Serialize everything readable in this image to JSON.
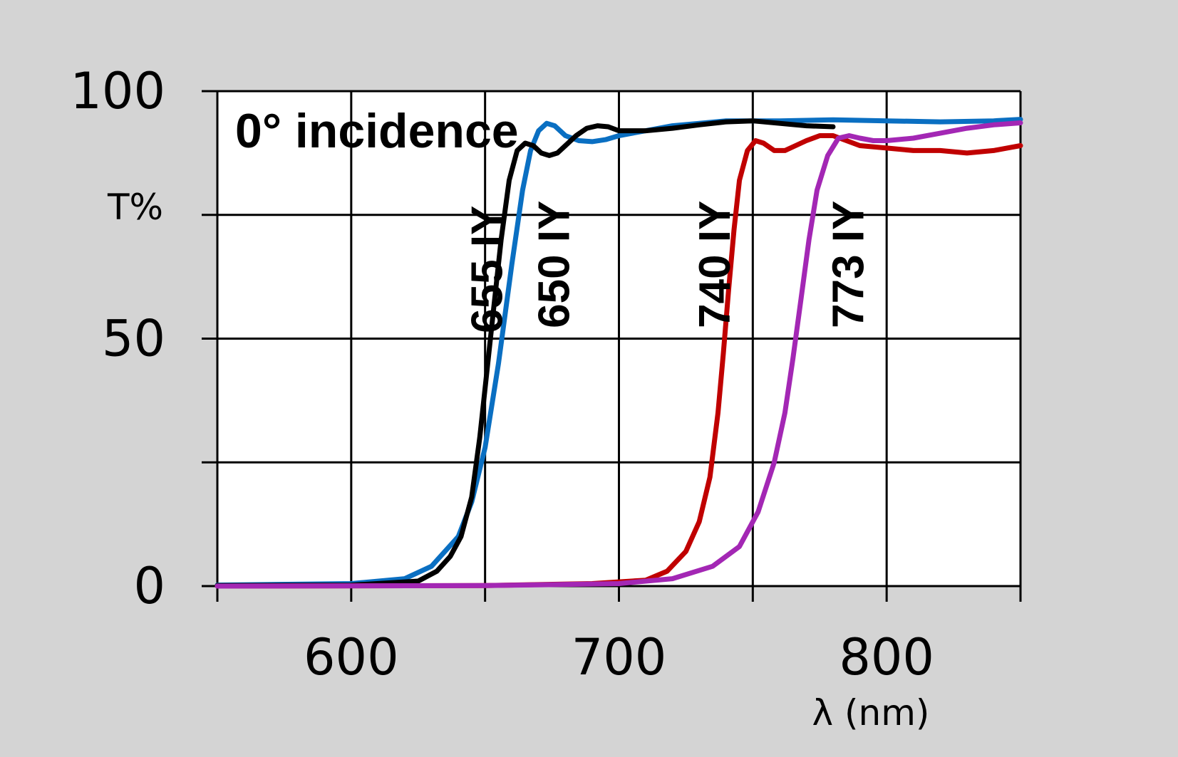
{
  "chart_data": {
    "type": "line",
    "title": "",
    "annotation": "0° incidence",
    "xlabel": "λ (nm)",
    "ylabel": "T%",
    "xlim": [
      550,
      850
    ],
    "ylim": [
      0,
      100
    ],
    "x_ticks": [
      600,
      700,
      800
    ],
    "y_ticks": [
      0,
      50,
      100
    ],
    "x_minor_ticks": [
      550,
      650,
      750,
      850
    ],
    "y_minor_ticks": [
      25,
      75
    ],
    "grid": true,
    "series": [
      {
        "name": "650 IY",
        "color": "#0a6fc2",
        "label_x": 677,
        "label_y": 65,
        "points": [
          [
            550,
            0.2
          ],
          [
            600,
            0.5
          ],
          [
            620,
            1.5
          ],
          [
            630,
            4
          ],
          [
            640,
            10
          ],
          [
            645,
            17
          ],
          [
            650,
            28
          ],
          [
            655,
            45
          ],
          [
            660,
            65
          ],
          [
            664,
            80
          ],
          [
            667,
            88
          ],
          [
            670,
            92
          ],
          [
            673,
            93.5
          ],
          [
            676,
            93
          ],
          [
            680,
            91
          ],
          [
            685,
            90
          ],
          [
            690,
            89.8
          ],
          [
            695,
            90.2
          ],
          [
            700,
            91
          ],
          [
            710,
            92
          ],
          [
            720,
            93
          ],
          [
            730,
            93.5
          ],
          [
            740,
            94
          ],
          [
            760,
            94
          ],
          [
            780,
            94.2
          ],
          [
            800,
            94
          ],
          [
            820,
            93.8
          ],
          [
            840,
            94
          ],
          [
            850,
            94.3
          ]
        ]
      },
      {
        "name": "655 IY",
        "color": "#000000",
        "label_x": 652,
        "label_y": 64,
        "points": [
          [
            550,
            0.1
          ],
          [
            600,
            0.2
          ],
          [
            625,
            1
          ],
          [
            632,
            3
          ],
          [
            637,
            6
          ],
          [
            641,
            10
          ],
          [
            645,
            18
          ],
          [
            648,
            30
          ],
          [
            650,
            40
          ],
          [
            653,
            55
          ],
          [
            656,
            70
          ],
          [
            659,
            82
          ],
          [
            662,
            88
          ],
          [
            665,
            89.5
          ],
          [
            668,
            89
          ],
          [
            671,
            87.5
          ],
          [
            674,
            87
          ],
          [
            677,
            87.5
          ],
          [
            680,
            89
          ],
          [
            684,
            91
          ],
          [
            688,
            92.5
          ],
          [
            692,
            93
          ],
          [
            696,
            92.8
          ],
          [
            700,
            92
          ],
          [
            710,
            92
          ],
          [
            720,
            92.5
          ],
          [
            730,
            93.2
          ],
          [
            740,
            93.8
          ],
          [
            750,
            94
          ],
          [
            760,
            93.5
          ],
          [
            770,
            93
          ],
          [
            780,
            92.8
          ]
        ]
      },
      {
        "name": "740 IY",
        "color": "#c00000",
        "label_x": 737,
        "label_y": 65,
        "points": [
          [
            550,
            0
          ],
          [
            650,
            0.1
          ],
          [
            690,
            0.5
          ],
          [
            710,
            1.2
          ],
          [
            718,
            3
          ],
          [
            725,
            7
          ],
          [
            730,
            13
          ],
          [
            734,
            22
          ],
          [
            737,
            35
          ],
          [
            739,
            47
          ],
          [
            741,
            60
          ],
          [
            743,
            72
          ],
          [
            745,
            82
          ],
          [
            748,
            88
          ],
          [
            751,
            90
          ],
          [
            754,
            89.5
          ],
          [
            758,
            88
          ],
          [
            762,
            88
          ],
          [
            766,
            89
          ],
          [
            770,
            90
          ],
          [
            775,
            91
          ],
          [
            780,
            91
          ],
          [
            785,
            90
          ],
          [
            790,
            89
          ],
          [
            800,
            88.5
          ],
          [
            810,
            88
          ],
          [
            820,
            88
          ],
          [
            830,
            87.5
          ],
          [
            840,
            88
          ],
          [
            845,
            88.5
          ],
          [
            850,
            89
          ]
        ]
      },
      {
        "name": "773 IY",
        "color": "#a327b4",
        "label_x": 787,
        "label_y": 65,
        "points": [
          [
            550,
            0
          ],
          [
            650,
            0.1
          ],
          [
            700,
            0.5
          ],
          [
            720,
            1.5
          ],
          [
            735,
            4
          ],
          [
            745,
            8
          ],
          [
            752,
            15
          ],
          [
            758,
            25
          ],
          [
            762,
            35
          ],
          [
            765,
            46
          ],
          [
            768,
            58
          ],
          [
            771,
            70
          ],
          [
            774,
            80
          ],
          [
            778,
            87
          ],
          [
            782,
            90.5
          ],
          [
            786,
            91
          ],
          [
            790,
            90.5
          ],
          [
            795,
            90
          ],
          [
            800,
            90
          ],
          [
            810,
            90.5
          ],
          [
            820,
            91.5
          ],
          [
            830,
            92.5
          ],
          [
            840,
            93.2
          ],
          [
            850,
            93.6
          ]
        ]
      }
    ]
  }
}
